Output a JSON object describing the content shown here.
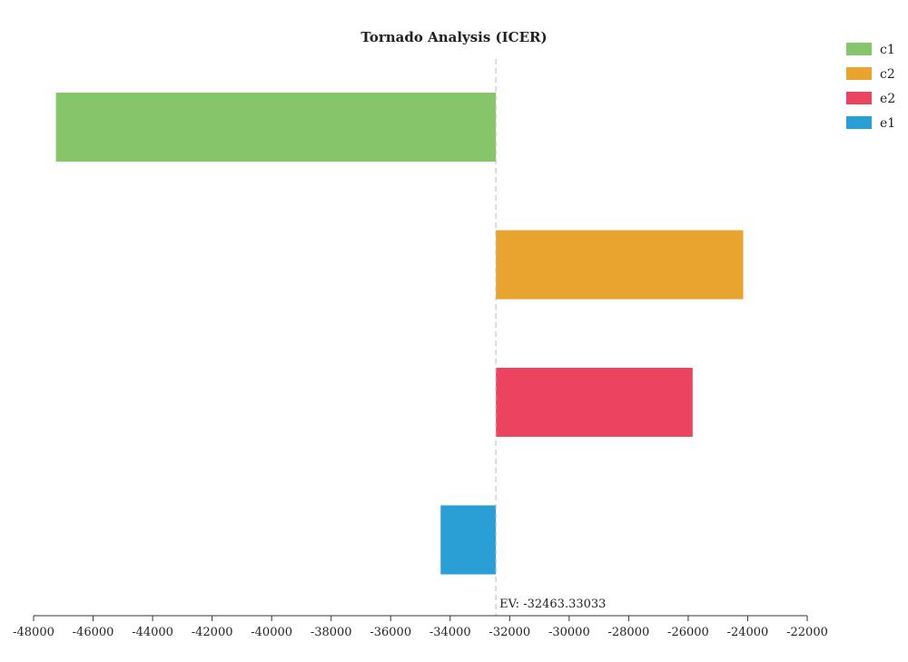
{
  "chart_data": {
    "type": "bar",
    "orientation": "horizontal",
    "title": "Tornado Analysis (ICER)",
    "xlabel": "",
    "ylabel": "",
    "xlim": [
      -48000,
      -22000
    ],
    "x_ticks": [
      -48000,
      -46000,
      -44000,
      -42000,
      -40000,
      -38000,
      -36000,
      -34000,
      -32000,
      -30000,
      -28000,
      -26000,
      -24000,
      -22000
    ],
    "x_tick_labels": [
      "-48000",
      "-46000",
      "-44000",
      "-42000",
      "-40000",
      "-38000",
      "-36000",
      "-34000",
      "-32000",
      "-30000",
      "-28000",
      "-26000",
      "-24000",
      "-22000"
    ],
    "ev_value": -32463.33033,
    "ev_label": "EV: -32463.33033",
    "grid": false,
    "legend_position": "top-right",
    "series": [
      {
        "name": "c1",
        "start": -32463.33033,
        "end": -47250,
        "color": "#86c56a"
      },
      {
        "name": "c2",
        "start": -32463.33033,
        "end": -24150,
        "color": "#e8a42f"
      },
      {
        "name": "e2",
        "start": -32463.33033,
        "end": -25850,
        "color": "#ec4460"
      },
      {
        "name": "e1",
        "start": -32463.33033,
        "end": -34320,
        "color": "#2a9fd6"
      }
    ]
  }
}
